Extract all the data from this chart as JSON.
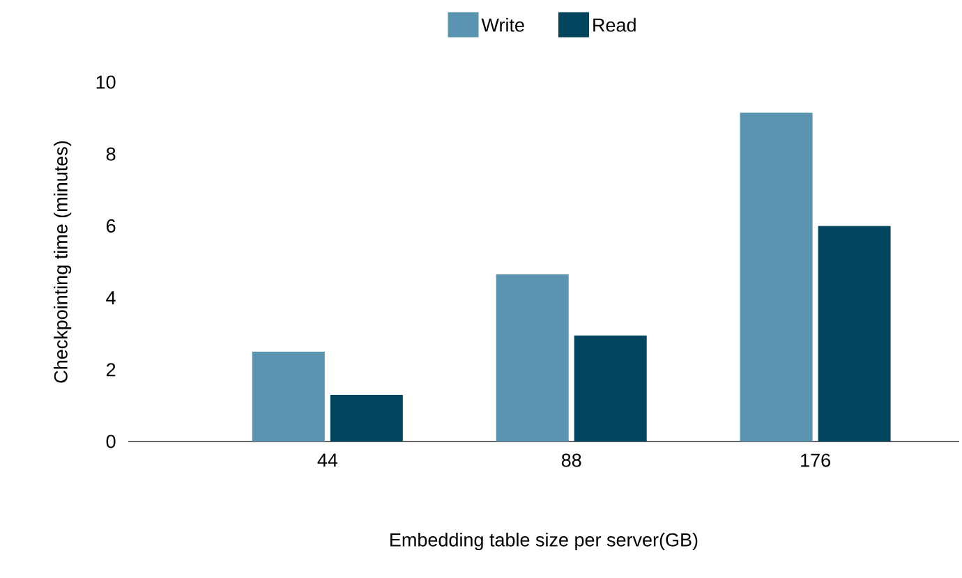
{
  "chart_data": {
    "type": "bar",
    "xlabel": "Embedding table size per server(GB)",
    "ylabel": "Checkpointing time (minutes)",
    "categories": [
      "44",
      "88",
      "176"
    ],
    "series": [
      {
        "name": "Write",
        "color": "#5a94b1",
        "values": [
          2.5,
          4.65,
          9.15
        ]
      },
      {
        "name": "Read",
        "color": "#03455f",
        "values": [
          1.3,
          2.95,
          6.0
        ]
      }
    ],
    "ylim": [
      0,
      10
    ],
    "yticks": [
      0,
      2,
      4,
      6,
      8,
      10
    ],
    "legend": "top"
  }
}
